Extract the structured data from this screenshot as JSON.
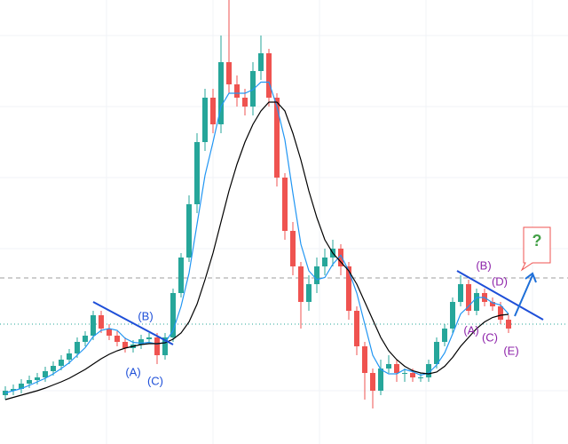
{
  "chart_data": {
    "type": "candlestick",
    "ylim": [
      0,
      100
    ],
    "up_color": "#26a69a",
    "down_color": "#ef5350",
    "open": [
      11,
      12,
      12.4,
      13.6,
      14.4,
      15,
      16.4,
      17.6,
      19,
      20.4,
      23,
      24.4,
      29,
      26,
      24.4,
      23,
      21.6,
      22.4,
      23.6,
      24,
      20,
      24,
      34,
      42,
      54,
      68,
      78,
      72,
      86,
      81,
      78,
      76,
      84,
      88,
      78,
      60,
      48,
      40,
      32,
      36,
      40,
      42,
      44,
      40,
      30,
      22,
      16,
      12,
      17,
      18,
      16,
      16,
      15,
      15,
      18,
      23,
      26,
      32,
      36,
      30,
      34,
      32,
      31,
      28
    ],
    "close": [
      12,
      12.4,
      13.6,
      14.4,
      15,
      16.4,
      17.6,
      19,
      20.4,
      23,
      24.4,
      29,
      26,
      24.4,
      23,
      21.6,
      22.4,
      23.6,
      24,
      20,
      24,
      34,
      42,
      54,
      68,
      78,
      72,
      86,
      81,
      78,
      76,
      84,
      88,
      78,
      60,
      48,
      40,
      32,
      36,
      40,
      42,
      44,
      40,
      30,
      22,
      16,
      12,
      17,
      18,
      16,
      16,
      15,
      15,
      18,
      23,
      26,
      32,
      36,
      30,
      34,
      32,
      31,
      28,
      26
    ],
    "high": [
      13,
      13.4,
      14.6,
      15.4,
      16,
      17.4,
      18.6,
      20,
      21.4,
      24,
      25.4,
      30,
      30,
      27,
      25.4,
      24,
      23.4,
      24.6,
      25,
      25,
      25,
      35,
      43,
      56,
      70,
      80,
      80,
      92,
      100,
      83,
      80,
      86,
      92,
      89,
      79,
      61,
      50,
      41,
      38,
      42,
      44,
      46,
      45,
      41,
      31,
      23,
      17,
      19,
      20,
      19,
      17,
      17,
      16,
      19,
      24,
      27,
      33,
      38,
      37,
      35,
      35,
      33,
      32,
      29
    ],
    "low": [
      10,
      11,
      11.4,
      12.6,
      13.4,
      14,
      15.4,
      16.6,
      18,
      19.4,
      22,
      23.4,
      25,
      23.4,
      22,
      20.6,
      20.6,
      21.4,
      22.6,
      18,
      19,
      23,
      33,
      41,
      52,
      66,
      70,
      70,
      79,
      76,
      74,
      74,
      82,
      76,
      58,
      46,
      38,
      26,
      30,
      34,
      38,
      40,
      38,
      28,
      20,
      10,
      8,
      11,
      16,
      14,
      14,
      14,
      14,
      14,
      17,
      22,
      25,
      31,
      29,
      29,
      31,
      30,
      27,
      25
    ],
    "series": [
      {
        "color": "#2196f3",
        "values": [
          11.5,
          12,
          12.5,
          13.2,
          14,
          14.8,
          15.8,
          17,
          18.3,
          20,
          21.7,
          24.2,
          25.6,
          26,
          25.6,
          23.8,
          22.9,
          22.7,
          22.9,
          22.5,
          22.9,
          25.5,
          31,
          38.5,
          49.5,
          60.5,
          68,
          76,
          79,
          79,
          79,
          79.8,
          81.5,
          81.5,
          76,
          68.5,
          56.5,
          45,
          39,
          37,
          37.5,
          40.5,
          42.5,
          39,
          34,
          27,
          20,
          16.8,
          15.8,
          15.8,
          16.8,
          16.3,
          15.5,
          16,
          17.8,
          20.5,
          24.8,
          29.3,
          31,
          33,
          33,
          31.8,
          31.3,
          29.3
        ]
      },
      {
        "color": "#000000",
        "values": [
          10,
          10.5,
          11,
          11.5,
          12,
          12.6,
          13.3,
          14,
          14.8,
          15.8,
          16.8,
          18,
          19.2,
          20.2,
          21,
          21.6,
          22,
          22.4,
          22.6,
          22.6,
          22.8,
          23.6,
          25,
          27.5,
          31.5,
          37,
          43,
          50,
          57,
          63,
          68,
          72,
          75,
          77,
          77,
          75,
          70,
          64,
          57,
          51,
          46,
          43,
          41,
          39,
          36,
          32,
          28,
          24,
          21,
          19,
          17.5,
          16.5,
          16,
          15.8,
          16.2,
          17.5,
          19.5,
          22,
          24,
          26,
          27.5,
          28.5,
          29,
          29.2
        ]
      }
    ],
    "levels": [
      {
        "value": 37.4,
        "color": "#9e9e9e",
        "dash": "5 4"
      },
      {
        "value": 27,
        "color": "#26a69a",
        "dash": "1 3"
      }
    ],
    "wave1": [
      "(A)",
      "(B)",
      "(C)"
    ],
    "wave2": [
      "(A)",
      "(B)",
      "(C)",
      "(D)",
      "(E)"
    ],
    "question": "?"
  }
}
